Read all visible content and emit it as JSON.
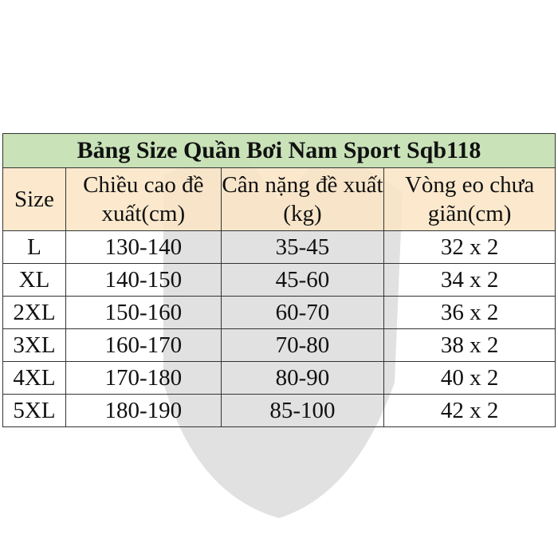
{
  "title": "Bảng Size Quần Bơi Nam Sport  Sqb118",
  "headers": {
    "size": "Size",
    "height": "Chiều cao đề xuất(cm)",
    "weight": "Cân nặng đề xuất (kg)",
    "waist": "Vòng eo chưa giãn(cm)"
  },
  "rows": [
    {
      "size": "L",
      "height": "130-140",
      "weight": "35-45",
      "waist": "32 x 2"
    },
    {
      "size": "XL",
      "height": "140-150",
      "weight": "45-60",
      "waist": "34 x 2"
    },
    {
      "size": "2XL",
      "height": "150-160",
      "weight": "60-70",
      "waist": "36 x 2"
    },
    {
      "size": "3XL",
      "height": "160-170",
      "weight": "70-80",
      "waist": "38 x 2"
    },
    {
      "size": "4XL",
      "height": "170-180",
      "weight": "80-90",
      "waist": "40 x 2"
    },
    {
      "size": "5XL",
      "height": "180-190",
      "weight": "85-100",
      "waist": "42 x 2"
    }
  ],
  "colors": {
    "title_bg": "#c6e0b4",
    "header_bg": "#fce5c4",
    "watermark": "#c8c8c8"
  }
}
